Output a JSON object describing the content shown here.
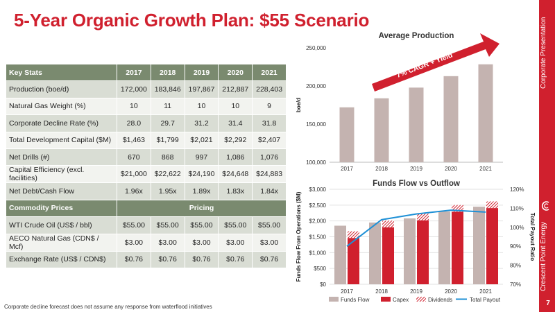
{
  "page": {
    "title": "5-Year Organic Growth Plan: $55 Scenario",
    "sidebar_top": "Corporate Presentation",
    "sidebar_bottom": "Crescent Point Energy",
    "page_number": "7",
    "footnote": "Corporate decline forecast does not assume any response from waterflood initiatives"
  },
  "colors": {
    "accent": "#d0202e",
    "header": "#7a8a6f",
    "row_dark": "#d9ddd4",
    "row_light": "#f2f3ef",
    "bar": "#c4b3b0",
    "line": "#1e90d6"
  },
  "table": {
    "header_label": "Key Stats",
    "years": [
      "2017",
      "2018",
      "2019",
      "2020",
      "2021"
    ],
    "rows": [
      {
        "label": "Production (boe/d)",
        "values": [
          "172,000",
          "183,846",
          "197,867",
          "212,887",
          "228,403"
        ]
      },
      {
        "label": "Natural Gas Weight (%)",
        "values": [
          "10",
          "11",
          "10",
          "10",
          "9"
        ]
      },
      {
        "label": "Corporate Decline Rate (%)",
        "values": [
          "28.0",
          "29.7",
          "31.2",
          "31.4",
          "31.8"
        ]
      },
      {
        "label": "Total Development Capital ($M)",
        "values": [
          "$1,463",
          "$1,799",
          "$2,021",
          "$2,292",
          "$2,407"
        ]
      },
      {
        "label": "Net Drills (#)",
        "values": [
          "670",
          "868",
          "997",
          "1,086",
          "1,076"
        ]
      },
      {
        "label": "Capital Efficiency (excl. facilities)",
        "values": [
          "$21,000",
          "$22,622",
          "$24,190",
          "$24,648",
          "$24,883"
        ]
      },
      {
        "label": "Net Debt/Cash Flow",
        "values": [
          "1.96x",
          "1.95x",
          "1.89x",
          "1.83x",
          "1.84x"
        ]
      }
    ],
    "commodity_label": "Commodity Prices",
    "pricing_label": "Pricing",
    "price_rows": [
      {
        "label": "WTI Crude Oil (US$ / bbl)",
        "values": [
          "$55.00",
          "$55.00",
          "$55.00",
          "$55.00",
          "$55.00"
        ]
      },
      {
        "label": "AECO Natural Gas (CDN$ / Mcf)",
        "values": [
          "$3.00",
          "$3.00",
          "$3.00",
          "$3.00",
          "$3.00"
        ]
      },
      {
        "label": "Exchange Rate (US$ / CDN$)",
        "values": [
          "$0.76",
          "$0.76",
          "$0.76",
          "$0.76",
          "$0.76"
        ]
      }
    ]
  },
  "chart_data": [
    {
      "type": "bar",
      "title": "Average Production",
      "ylabel": "boe/d",
      "categories": [
        "2017",
        "2018",
        "2019",
        "2020",
        "2021"
      ],
      "values": [
        172000,
        183846,
        197867,
        212887,
        228403
      ],
      "ylim": [
        100000,
        250000
      ],
      "yticks": [
        "100,000",
        "150,000",
        "200,000",
        "250,000"
      ],
      "annotation": "7% CAGR + Yield"
    },
    {
      "type": "bar",
      "title": "Funds Flow vs Outflow",
      "ylabel": "Funds Flow From Operations ($M)",
      "y2label": "Total Payout Ratio",
      "categories": [
        "2017",
        "2018",
        "2019",
        "2020",
        "2021"
      ],
      "ylim": [
        0,
        3000
      ],
      "y2lim": [
        70,
        120
      ],
      "yticks": [
        "$0",
        "$500",
        "$1,000",
        "$1,500",
        "$2,000",
        "$2,500",
        "$3,000"
      ],
      "y2ticks": [
        "70%",
        "80%",
        "90%",
        "100%",
        "110%",
        "120%"
      ],
      "series": [
        {
          "name": "Funds Flow",
          "values": [
            1850,
            1950,
            2080,
            2300,
            2450
          ]
        },
        {
          "name": "Capex",
          "values": [
            1463,
            1799,
            2021,
            2292,
            2407
          ]
        },
        {
          "name": "Dividends",
          "values": [
            210,
            210,
            210,
            210,
            210
          ]
        },
        {
          "name": "Total Payout",
          "values": [
            90,
            104,
            107,
            109,
            108
          ]
        }
      ]
    }
  ]
}
